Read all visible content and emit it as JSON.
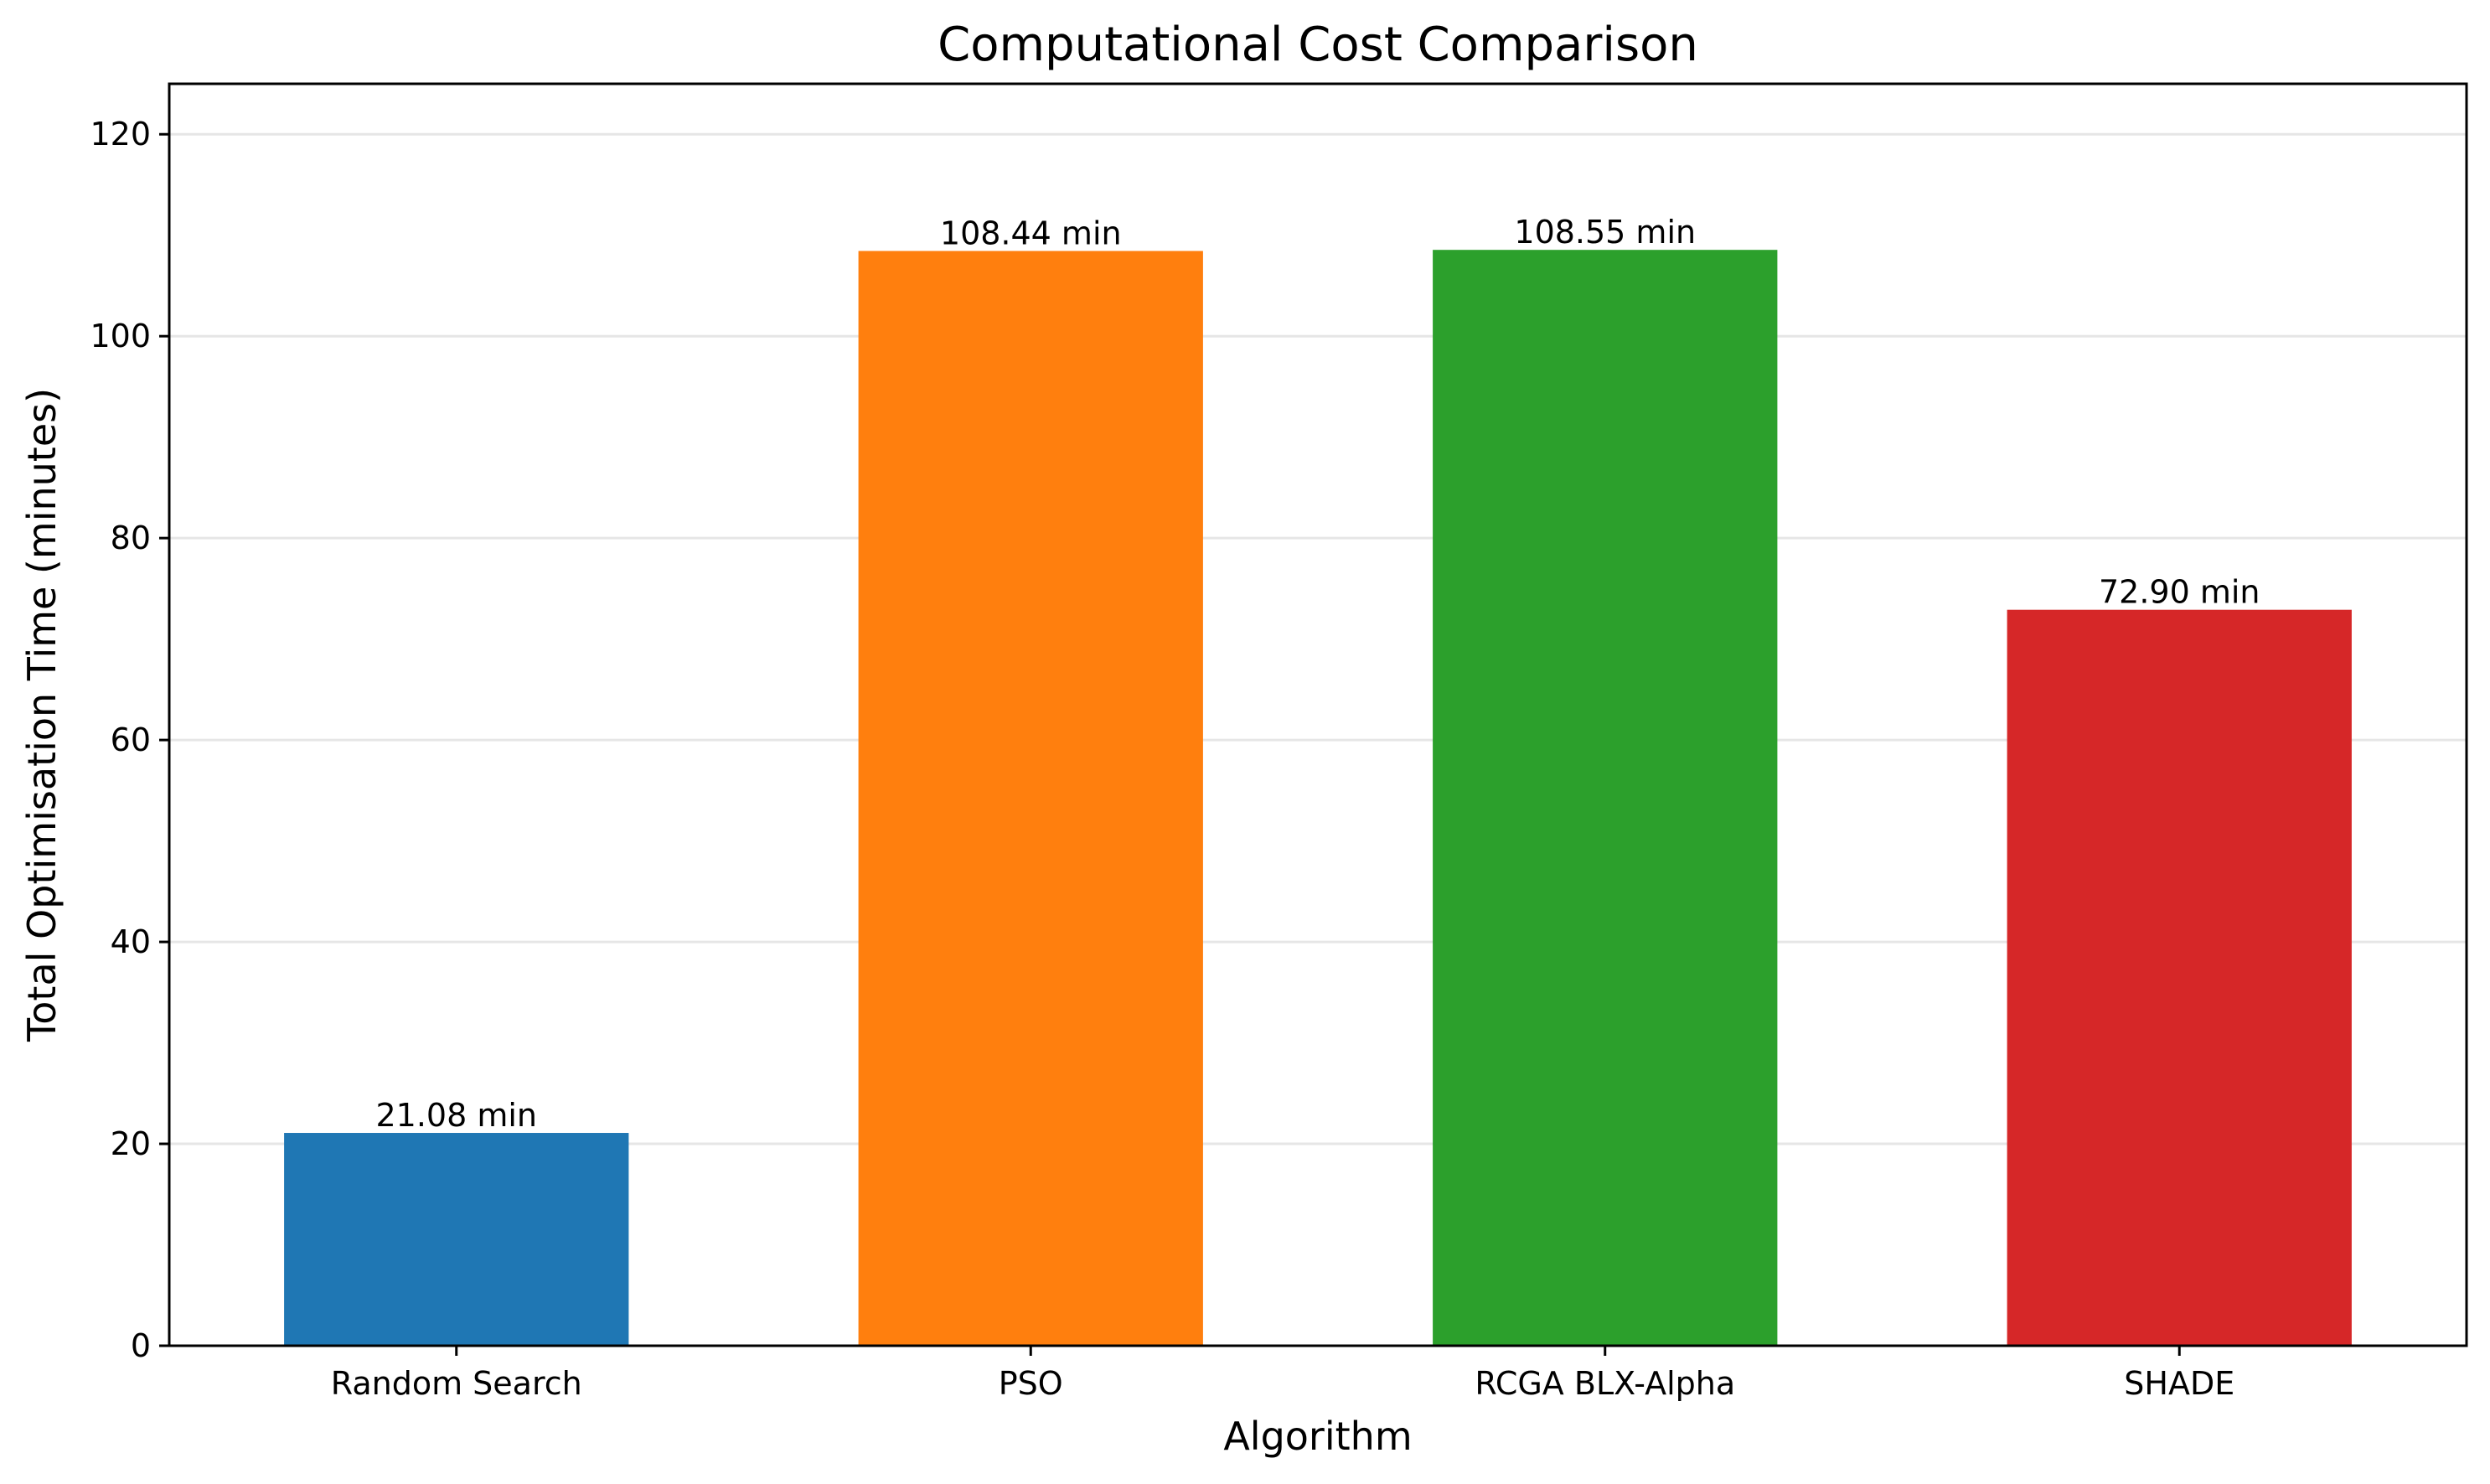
{
  "chart_data": {
    "type": "bar",
    "title": "Computational Cost Comparison",
    "xlabel": "Algorithm",
    "ylabel": "Total Optimisation Time (minutes)",
    "categories": [
      "Random Search",
      "PSO",
      "RCGA BLX-Alpha",
      "SHADE"
    ],
    "values": [
      21.08,
      108.44,
      108.55,
      72.9
    ],
    "data_labels": [
      "21.08 min",
      "108.44 min",
      "108.55 min",
      "72.90 min"
    ],
    "colors": [
      "#1f77b4",
      "#ff7f0e",
      "#2ca02c",
      "#d62728"
    ],
    "ylim": [
      0,
      125
    ],
    "yticks": [
      0,
      20,
      40,
      60,
      80,
      100,
      120
    ],
    "grid": "horizontal",
    "legend": "none"
  }
}
